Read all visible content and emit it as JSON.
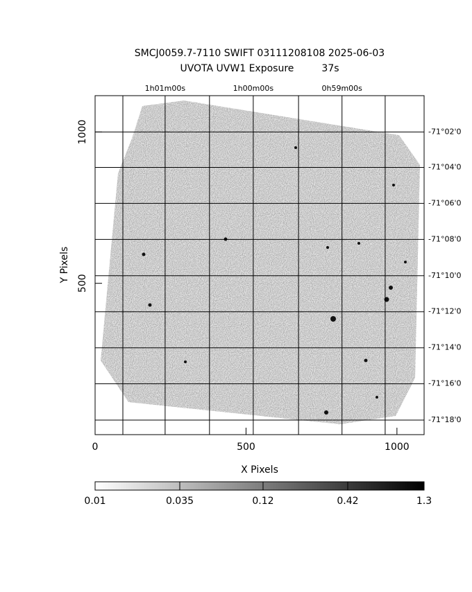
{
  "chart_data": {
    "type": "image",
    "title": "SMCJ0059.7-7110 SWIFT 03111208108 2025-06-03",
    "subtitle": "UVOTA UVW1 Exposure         37s",
    "xlabel": "X Pixels",
    "ylabel": "Y Pixels",
    "xlim": [
      0,
      1090
    ],
    "ylim": [
      0,
      1120
    ],
    "xticks": [
      0,
      500,
      1000
    ],
    "yticks": [
      500,
      1000
    ],
    "x2ticks": [
      {
        "value": 92,
        "label": null
      },
      {
        "value": 232,
        "label": "1h01m00s"
      },
      {
        "value": 379,
        "label": null
      },
      {
        "value": 524,
        "label": "1h00m00s"
      },
      {
        "value": 674,
        "label": null
      },
      {
        "value": 818,
        "label": "0h59m00s"
      },
      {
        "value": 961,
        "label": null
      }
    ],
    "y2ticks": [
      {
        "value": 1000,
        "label": "-71°02'0"
      },
      {
        "value": 883,
        "label": "-71°04'0"
      },
      {
        "value": 764,
        "label": "-71°06'0"
      },
      {
        "value": 645,
        "label": "-71°08'0"
      },
      {
        "value": 525,
        "label": "-71°10'0"
      },
      {
        "value": 406,
        "label": "-71°12'0"
      },
      {
        "value": 287,
        "label": "-71°14'0"
      },
      {
        "value": 168,
        "label": "-71°16'0"
      },
      {
        "value": 48,
        "label": "-71°18'0"
      }
    ],
    "grid": true,
    "colorbar": {
      "log": true,
      "colors": [
        "#ffffff",
        "#000000"
      ],
      "ticks": [
        0.01,
        0.035,
        0.12,
        0.42,
        1.3
      ]
    }
  }
}
